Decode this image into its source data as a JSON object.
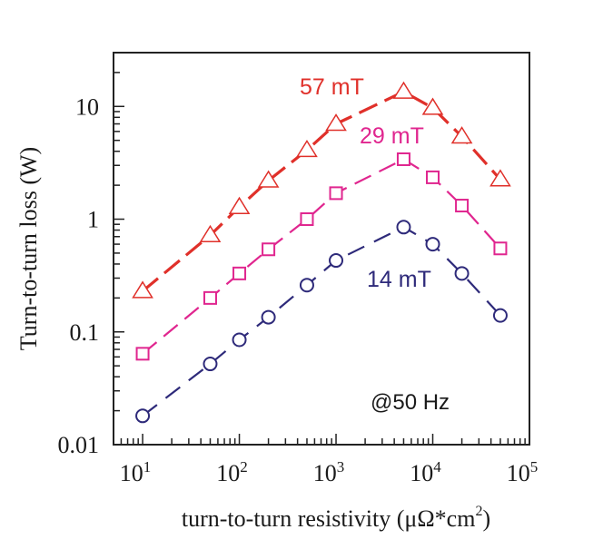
{
  "chart_data": {
    "type": "line",
    "title": "",
    "xlabel": "turn-to-turn resistivity (μΩ*cm",
    "xlabel_sup": "2",
    "xlabel_end": ")",
    "ylabel": "Turn-to-turn loss (W)",
    "xscale": "log",
    "yscale": "log",
    "xlim": [
      5,
      100000
    ],
    "ylim": [
      0.01,
      30
    ],
    "x_ticks": [
      {
        "value": 10,
        "base": "10",
        "exp": "1"
      },
      {
        "value": 100,
        "base": "10",
        "exp": "2"
      },
      {
        "value": 1000,
        "base": "10",
        "exp": "3"
      },
      {
        "value": 10000,
        "base": "10",
        "exp": "4"
      },
      {
        "value": 100000,
        "base": "10",
        "exp": "5"
      }
    ],
    "y_ticks": [
      {
        "value": 0.01,
        "label": "0.01"
      },
      {
        "value": 0.1,
        "label": "0.1"
      },
      {
        "value": 1,
        "label": "1"
      },
      {
        "value": 10,
        "label": "10"
      }
    ],
    "grid": false,
    "x": [
      10,
      50,
      100,
      200,
      500,
      1000,
      5000,
      10000,
      20000,
      50000
    ],
    "series": [
      {
        "name": "57 mT",
        "marker": "triangle",
        "color": "#e0302a",
        "values": [
          0.23,
          0.72,
          1.28,
          2.2,
          4.1,
          7.0,
          13.5,
          9.7,
          5.4,
          2.25
        ]
      },
      {
        "name": "29 mT",
        "marker": "square",
        "color": "#e0268f",
        "values": [
          0.064,
          0.2,
          0.33,
          0.54,
          1.0,
          1.7,
          3.4,
          2.35,
          1.32,
          0.55
        ]
      },
      {
        "name": "14 mT",
        "marker": "circle",
        "color": "#2e2a7a",
        "values": [
          0.018,
          0.052,
          0.085,
          0.135,
          0.26,
          0.43,
          0.85,
          0.6,
          0.33,
          0.14
        ]
      }
    ],
    "annotations": [
      {
        "text": "57 mT",
        "series": "57 mT"
      },
      {
        "text": "29 mT",
        "series": "29 mT"
      },
      {
        "text": "14 mT",
        "series": "14 mT"
      },
      {
        "text": "@50 Hz"
      }
    ]
  }
}
